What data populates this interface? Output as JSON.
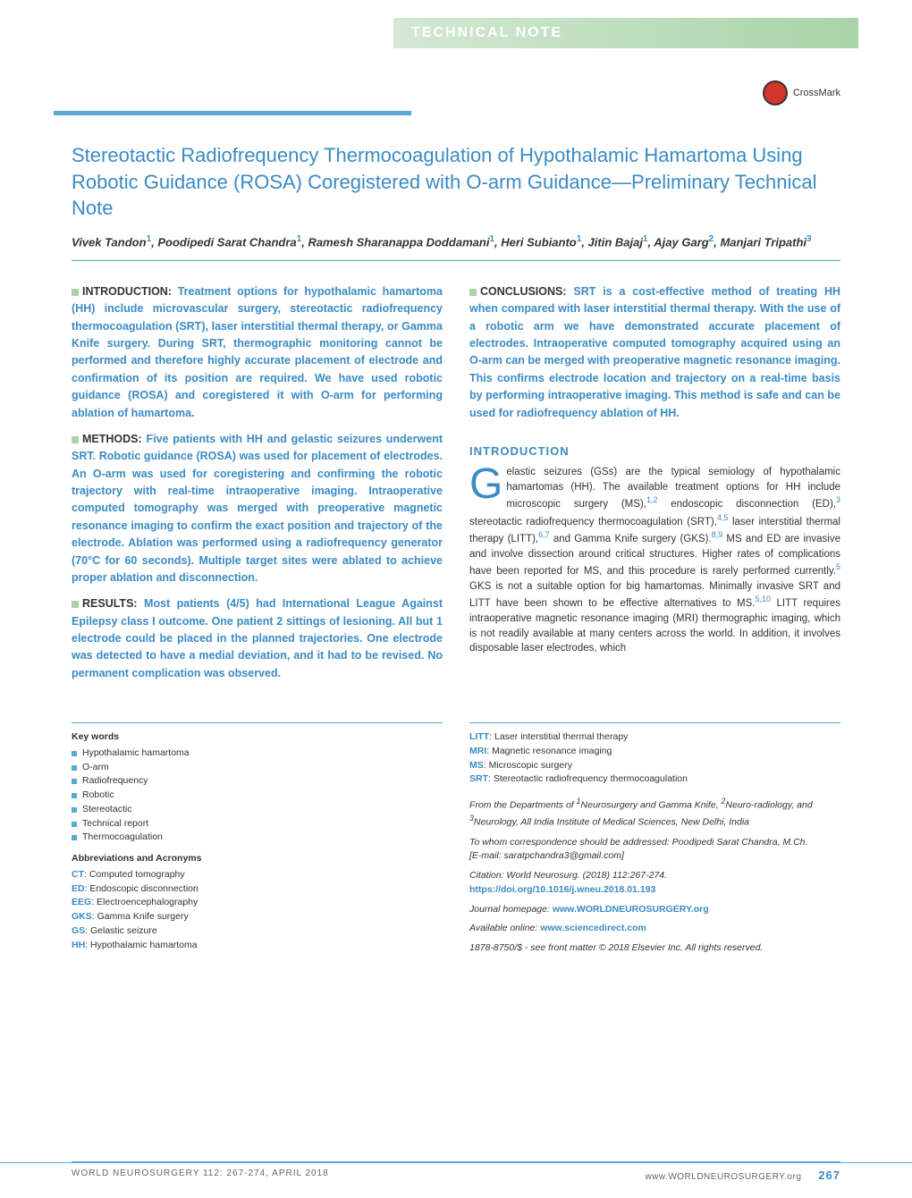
{
  "header": {
    "category": "Technical Note",
    "crossmark": "CrossMark"
  },
  "article": {
    "title": "Stereotactic Radiofrequency Thermocoagulation of Hypothalamic Hamartoma Using Robotic Guidance (ROSA) Coregistered with O-arm Guidance—Preliminary Technical Note",
    "authors_html": "Vivek Tandon<sup>1</sup>, Poodipedi Sarat Chandra<sup>1</sup>, Ramesh Sharanappa Doddamani<sup>1</sup>, Heri Subianto<sup>1</sup>, Jitin Bajaj<sup>1</sup>, Ajay Garg<sup>2</sup>, Manjari Tripathi<sup>3</sup>"
  },
  "abstract": {
    "introduction": "Treatment options for hypothalamic hamartoma (HH) include microvascular surgery, stereotactic radiofrequency thermocoagulation (SRT), laser interstitial thermal therapy, or Gamma Knife surgery. During SRT, thermographic monitoring cannot be performed and therefore highly accurate placement of electrode and confirmation of its position are required. We have used robotic guidance (ROSA) and coregistered it with O-arm for performing ablation of hamartoma.",
    "methods": "Five patients with HH and gelastic seizures underwent SRT. Robotic guidance (ROSA) was used for placement of electrodes. An O-arm was used for coregistering and confirming the robotic trajectory with real-time intraoperative imaging. Intraoperative computed tomography was merged with preoperative magnetic resonance imaging to confirm the exact position and trajectory of the electrode. Ablation was performed using a radiofrequency generator (70°C for 60 seconds). Multiple target sites were ablated to achieve proper ablation and disconnection.",
    "results": "Most patients (4/5) had International League Against Epilepsy class I outcome. One patient 2 sittings of lesioning. All but 1 electrode could be placed in the planned trajectories. One electrode was detected to have a medial deviation, and it had to be revised. No permanent complication was observed.",
    "conclusions": "SRT is a cost-effective method of treating HH when compared with laser interstitial thermal therapy. With the use of a robotic arm we have demonstrated accurate placement of electrodes. Intraoperative computed tomography acquired using an O-arm can be merged with preoperative magnetic resonance imaging. This confirms electrode location and trajectory on a real-time basis by performing intraoperative imaging. This method is safe and can be used for radiofrequency ablation of HH."
  },
  "intro": {
    "heading": "INTRODUCTION",
    "dropcap": "G",
    "text": "elastic seizures (GSs) are the typical semiology of hypothalamic hamartomas (HH). The available treatment options for HH include microscopic surgery (MS),<sup>1,2</sup> endoscopic disconnection (ED),<sup>3</sup> stereotactic radiofrequency thermocoagulation (SRT),<sup>4,5</sup> laser interstitial thermal therapy (LITT),<sup>6,7</sup> and Gamma Knife surgery (GKS).<sup>8,9</sup> MS and ED are invasive and involve dissection around critical structures. Higher rates of complications have been reported for MS, and this procedure is rarely performed currently.<sup>5</sup> GKS is not a suitable option for big hamartomas. Minimally invasive SRT and LITT have been shown to be effective alternatives to MS.<sup>5,10</sup> LITT requires intraoperative magnetic resonance imaging (MRI) thermographic imaging, which is not readily available at many centers across the world. In addition, it involves disposable laser electrodes, which"
  },
  "keywords": {
    "heading": "Key words",
    "items": [
      "Hypothalamic hamartoma",
      "O-arm",
      "Radiofrequency",
      "Robotic",
      "Stereotactic",
      "Technical report",
      "Thermocoagulation"
    ]
  },
  "abbreviations": {
    "heading": "Abbreviations and Acronyms",
    "items": [
      {
        "term": "CT",
        "def": "Computed tomography"
      },
      {
        "term": "ED",
        "def": "Endoscopic disconnection"
      },
      {
        "term": "EEG",
        "def": "Electroencephalography"
      },
      {
        "term": "GKS",
        "def": "Gamma Knife surgery"
      },
      {
        "term": "GS",
        "def": "Gelastic seizure"
      },
      {
        "term": "HH",
        "def": "Hypothalamic hamartoma"
      },
      {
        "term": "LITT",
        "def": "Laser interstitial thermal therapy"
      },
      {
        "term": "MRI",
        "def": "Magnetic resonance imaging"
      },
      {
        "term": "MS",
        "def": "Microscopic surgery"
      },
      {
        "term": "SRT",
        "def": "Stereotactic radiofrequency thermocoagulation"
      }
    ]
  },
  "meta": {
    "affiliation": "From the Departments of <sup>1</sup>Neurosurgery and Gamma Knife, <sup>2</sup>Neuro-radiology, and <sup>3</sup>Neurology, All India Institute of Medical Sciences, New Delhi, India",
    "correspondence": "To whom correspondence should be addressed: Poodipedi Sarat Chandra, M.Ch.",
    "email": "[E-mail: saratpchandra3@gmail.com]",
    "citation": "Citation: World Neurosurg. (2018) 112:267-274.",
    "doi": "https://doi.org/10.1016/j.wneu.2018.01.193",
    "homepage_label": "Journal homepage:",
    "homepage": "www.WORLDNEUROSURGERY.org",
    "available_label": "Available online:",
    "available": "www.sciencedirect.com",
    "copyright": "1878-8750/$ - see front matter © 2018 Elsevier Inc. All rights reserved."
  },
  "footer": {
    "left": "WORLD NEUROSURGERY 112: 267-274, APRIL 2018",
    "right_url": "www.WORLDNEUROSURGERY.org",
    "pagenum": "267"
  },
  "colors": {
    "primary_blue": "#3a8bc4",
    "light_blue": "#5aa8d4",
    "green_band": "#a8d4a8",
    "text": "#333333"
  }
}
